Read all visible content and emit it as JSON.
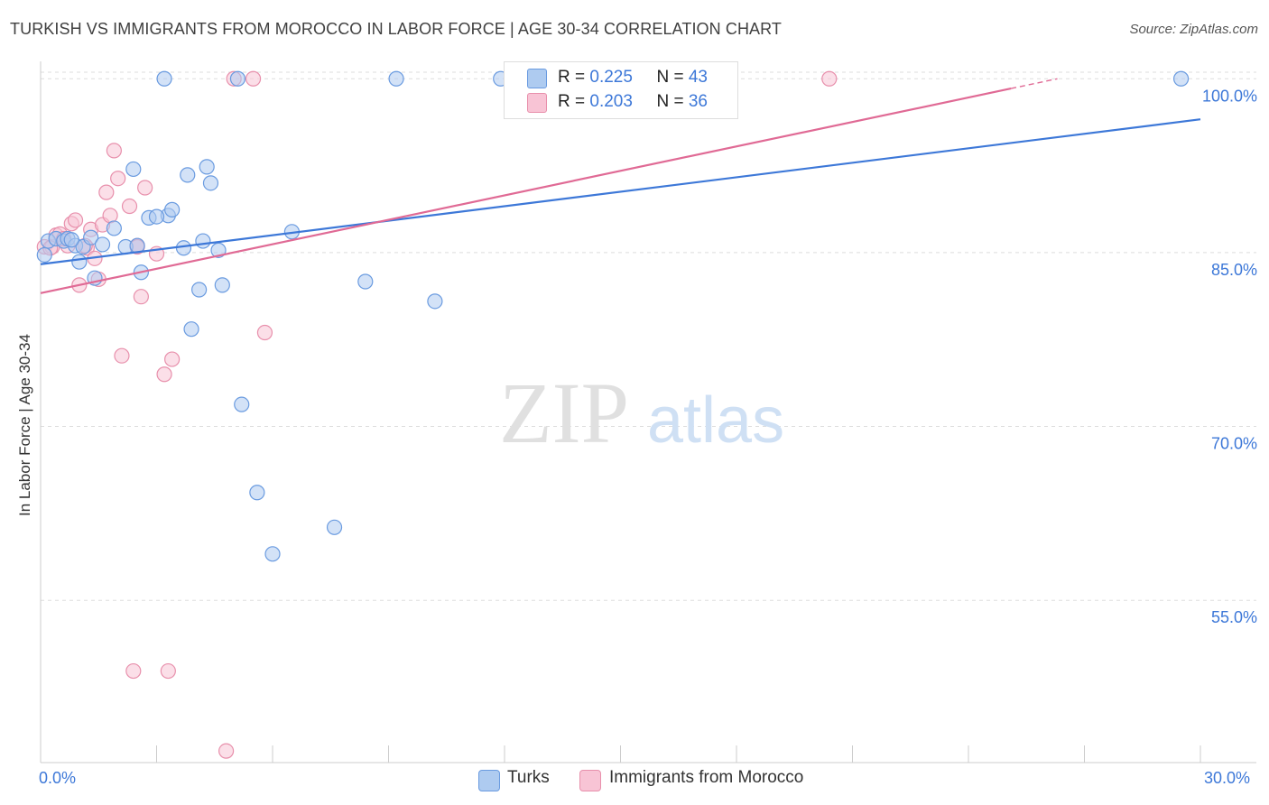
{
  "header": {
    "title": "TURKISH VS IMMIGRANTS FROM MOROCCO IN LABOR FORCE | AGE 30-34 CORRELATION CHART",
    "source": "Source: ZipAtlas.com"
  },
  "watermark": {
    "zip": "ZIP",
    "atlas": "atlas"
  },
  "legend_top": {
    "rows": [
      {
        "r_label": "R = ",
        "r_value": "0.225",
        "n_label": "N = ",
        "n_value": "43"
      },
      {
        "r_label": "R = ",
        "r_value": "0.203",
        "n_label": "N = ",
        "n_value": "36"
      }
    ]
  },
  "colors": {
    "turks_fill": "#aecbf0",
    "turks_stroke": "#6a9be0",
    "turks_line": "#3d78d8",
    "morocco_fill": "#f8c4d5",
    "morocco_stroke": "#e890ac",
    "morocco_line": "#e06a95",
    "accent_text": "#3d78d8",
    "grid": "#dddddd"
  },
  "chart_data": {
    "type": "scatter",
    "title": "TURKISH VS IMMIGRANTS FROM MOROCCO IN LABOR FORCE | AGE 30-34 CORRELATION CHART",
    "xlabel": "",
    "ylabel": "In Labor Force | Age 30-34",
    "xlim": [
      0,
      30
    ],
    "ylim": [
      41,
      101.5
    ],
    "x_tick_labels": [
      "0.0%",
      "30.0%"
    ],
    "y_ticks": [
      55,
      70,
      85,
      100
    ],
    "y_tick_labels": [
      "55.0%",
      "70.0%",
      "85.0%",
      "100.0%"
    ],
    "grid": true,
    "legend_position": "bottom-center",
    "series": [
      {
        "name": "Turks",
        "r": 0.225,
        "n": 43,
        "trend": {
          "x0": 0,
          "y0": 84.0,
          "x1": 30,
          "y1": 96.5
        },
        "points": [
          [
            0.1,
            84.8
          ],
          [
            0.2,
            86.0
          ],
          [
            0.4,
            86.2
          ],
          [
            0.6,
            86.0
          ],
          [
            0.7,
            86.2
          ],
          [
            0.9,
            85.6
          ],
          [
            1.0,
            84.2
          ],
          [
            1.1,
            85.5
          ],
          [
            1.3,
            86.3
          ],
          [
            1.6,
            85.7
          ],
          [
            1.9,
            87.1
          ],
          [
            2.2,
            85.5
          ],
          [
            2.4,
            92.2
          ],
          [
            2.5,
            85.6
          ],
          [
            2.8,
            88.0
          ],
          [
            2.6,
            83.3
          ],
          [
            1.4,
            82.8
          ],
          [
            3.3,
            88.2
          ],
          [
            3.4,
            88.7
          ],
          [
            3.2,
            100.0
          ],
          [
            3.7,
            85.4
          ],
          [
            3.9,
            78.4
          ],
          [
            3.8,
            91.7
          ],
          [
            4.1,
            81.8
          ],
          [
            4.2,
            86.0
          ],
          [
            4.3,
            92.4
          ],
          [
            4.4,
            91.0
          ],
          [
            4.6,
            85.2
          ],
          [
            4.7,
            82.2
          ],
          [
            5.1,
            100.0
          ],
          [
            5.2,
            71.9
          ],
          [
            5.6,
            64.3
          ],
          [
            6.0,
            59.0
          ],
          [
            6.5,
            86.8
          ],
          [
            7.6,
            61.3
          ],
          [
            8.4,
            82.5
          ],
          [
            9.2,
            100.0
          ],
          [
            10.2,
            80.8
          ],
          [
            11.9,
            100.0
          ],
          [
            12.2,
            100.0
          ],
          [
            29.5,
            100.0
          ],
          [
            3.0,
            88.1
          ],
          [
            0.8,
            86.1
          ]
        ]
      },
      {
        "name": "Immigrants from Morocco",
        "r": 0.203,
        "n": 36,
        "trend": {
          "x0": 0,
          "y0": 81.5,
          "x1": 26.3,
          "y1": 100.0,
          "solid_until_x": 25.1
        },
        "points": [
          [
            0.1,
            85.5
          ],
          [
            0.3,
            85.5
          ],
          [
            0.4,
            86.5
          ],
          [
            0.5,
            86.6
          ],
          [
            0.7,
            85.6
          ],
          [
            0.8,
            87.5
          ],
          [
            0.9,
            87.8
          ],
          [
            1.0,
            82.2
          ],
          [
            1.2,
            85.4
          ],
          [
            1.3,
            87.0
          ],
          [
            1.4,
            84.5
          ],
          [
            1.5,
            82.7
          ],
          [
            1.6,
            87.4
          ],
          [
            1.7,
            90.2
          ],
          [
            1.8,
            88.2
          ],
          [
            1.9,
            93.8
          ],
          [
            2.0,
            91.4
          ],
          [
            2.1,
            76.1
          ],
          [
            2.3,
            89.0
          ],
          [
            2.4,
            48.9
          ],
          [
            2.5,
            85.6
          ],
          [
            2.5,
            85.5
          ],
          [
            2.6,
            81.2
          ],
          [
            2.7,
            90.6
          ],
          [
            3.0,
            84.9
          ],
          [
            3.2,
            74.5
          ],
          [
            3.3,
            48.9
          ],
          [
            3.4,
            75.8
          ],
          [
            4.8,
            42.0
          ],
          [
            5.0,
            100.0
          ],
          [
            5.5,
            100.0
          ],
          [
            5.8,
            78.1
          ],
          [
            20.4,
            100.0
          ],
          [
            0.25,
            85.4
          ],
          [
            0.6,
            86.2
          ],
          [
            1.15,
            85.6
          ]
        ]
      }
    ]
  },
  "bottom_legend": {
    "items": [
      "Turks",
      "Immigrants from Morocco"
    ]
  }
}
